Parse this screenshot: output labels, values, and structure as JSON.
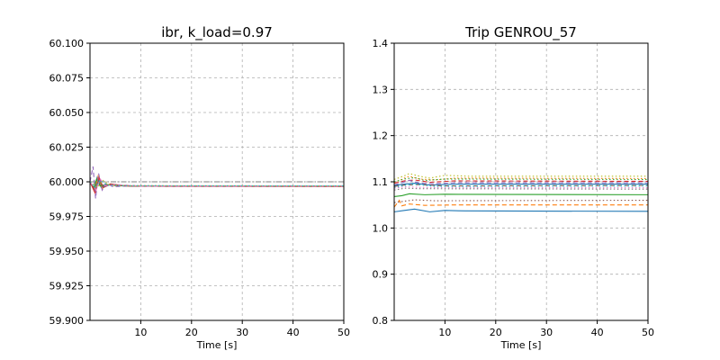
{
  "chart_data": [
    {
      "type": "line",
      "title": "ibr, k_load=0.97",
      "xlabel": "Time [s]",
      "ylabel": "",
      "xlim": [
        0,
        50
      ],
      "ylim": [
        59.9,
        60.1
      ],
      "xticks": [
        10,
        20,
        30,
        40,
        50
      ],
      "xtick_labels": [
        "10",
        "20",
        "30",
        "40",
        "50"
      ],
      "yticks": [
        59.9,
        59.925,
        59.95,
        59.975,
        60.0,
        60.025,
        60.05,
        60.075,
        60.1
      ],
      "ytick_labels": [
        "59.900",
        "59.925",
        "59.950",
        "59.975",
        "60.000",
        "60.025",
        "60.050",
        "60.075",
        "60.100"
      ],
      "grid": true,
      "series": [
        {
          "color": "#1f77b4",
          "dash": "solid",
          "points": [
            [
              0,
              60.0
            ],
            [
              0.8,
              59.994
            ],
            [
              1.4,
              60.003
            ],
            [
              2.2,
              59.996
            ],
            [
              3,
              59.998
            ],
            [
              5,
              59.9975
            ],
            [
              8,
              59.997
            ],
            [
              15,
              59.9968
            ],
            [
              50,
              59.9968
            ]
          ]
        },
        {
          "color": "#ff7f0e",
          "dash": "solid",
          "points": [
            [
              0,
              60.0
            ],
            [
              0.9,
              59.993
            ],
            [
              1.6,
              60.004
            ],
            [
              2.4,
              59.995
            ],
            [
              3.2,
              59.998
            ],
            [
              5,
              59.9972
            ],
            [
              10,
              59.9968
            ],
            [
              50,
              59.9967
            ]
          ]
        },
        {
          "color": "#2ca02c",
          "dash": "solid",
          "points": [
            [
              0,
              60.0
            ],
            [
              0.7,
              59.995
            ],
            [
              1.3,
              60.002
            ],
            [
              2,
              59.997
            ],
            [
              3,
              59.998
            ],
            [
              6,
              59.9972
            ],
            [
              12,
              59.9968
            ],
            [
              50,
              59.9968
            ]
          ]
        },
        {
          "color": "#d62728",
          "dash": "solid",
          "points": [
            [
              0,
              60.0
            ],
            [
              1,
              59.992
            ],
            [
              1.8,
              60.003
            ],
            [
              2.6,
              59.996
            ],
            [
              4,
              59.9985
            ],
            [
              7,
              59.997
            ],
            [
              15,
              59.9967
            ],
            [
              50,
              59.9966
            ]
          ]
        },
        {
          "color": "#9467bd",
          "dash": "dashed",
          "points": [
            [
              0,
              60.0
            ],
            [
              0.6,
              60.011
            ],
            [
              1.1,
              59.988
            ],
            [
              1.7,
              60.006
            ],
            [
              2.4,
              59.994
            ],
            [
              3.2,
              59.999
            ],
            [
              4.5,
              59.9965
            ],
            [
              8,
              59.997
            ],
            [
              50,
              59.9968
            ]
          ]
        },
        {
          "color": "#8c564b",
          "dash": "solid",
          "points": [
            [
              0,
              60.0
            ],
            [
              0.9,
              59.995
            ],
            [
              1.7,
              60.001
            ],
            [
              2.7,
              59.996
            ],
            [
              4,
              59.998
            ],
            [
              8,
              59.9969
            ],
            [
              50,
              59.9968
            ]
          ]
        },
        {
          "color": "#e377c2",
          "dash": "dashed",
          "points": [
            [
              0,
              60.0
            ],
            [
              1.2,
              59.994
            ],
            [
              2,
              60.002
            ],
            [
              3,
              59.997
            ],
            [
              5,
              59.998
            ],
            [
              10,
              59.9969
            ],
            [
              50,
              59.9968
            ]
          ]
        },
        {
          "color": "#7f7f7f",
          "dash": "dashdot",
          "points": [
            [
              0,
              60.0
            ],
            [
              50,
              60.0
            ]
          ]
        },
        {
          "color": "#bcbd22",
          "dash": "dotted",
          "points": [
            [
              0,
              60.0
            ],
            [
              1.5,
              59.996
            ],
            [
              2.5,
              60.001
            ],
            [
              4,
              59.9975
            ],
            [
              8,
              59.9972
            ],
            [
              50,
              59.997
            ]
          ]
        },
        {
          "color": "#17becf",
          "dash": "dotted",
          "points": [
            [
              0,
              60.0
            ],
            [
              1.0,
              59.996
            ],
            [
              2.0,
              60.001
            ],
            [
              3.5,
              59.9975
            ],
            [
              7,
              59.9972
            ],
            [
              50,
              59.997
            ]
          ]
        }
      ]
    },
    {
      "type": "line",
      "title": "Trip GENROU_57",
      "xlabel": "Time [s]",
      "ylabel": "",
      "xlim": [
        0,
        50
      ],
      "ylim": [
        0.8,
        1.4
      ],
      "xticks": [
        10,
        20,
        30,
        40,
        50
      ],
      "xtick_labels": [
        "10",
        "20",
        "30",
        "40",
        "50"
      ],
      "yticks": [
        0.8,
        0.9,
        1.0,
        1.1,
        1.2,
        1.3,
        1.4
      ],
      "ytick_labels": [
        "0.8",
        "0.9",
        "1.0",
        "1.1",
        "1.2",
        "1.3",
        "1.4"
      ],
      "grid": true,
      "series": [
        {
          "color": "#bcbd22",
          "dash": "dotted",
          "points": [
            [
              0,
              1.105
            ],
            [
              2,
              1.113
            ],
            [
              3,
              1.118
            ],
            [
              5,
              1.112
            ],
            [
              7,
              1.108
            ],
            [
              10,
              1.114
            ],
            [
              15,
              1.112
            ],
            [
              50,
              1.112
            ]
          ]
        },
        {
          "color": "#ff7f0e",
          "dash": "dotted",
          "points": [
            [
              0,
              1.098
            ],
            [
              2,
              1.108
            ],
            [
              3,
              1.112
            ],
            [
              5,
              1.106
            ],
            [
              8,
              1.104
            ],
            [
              12,
              1.108
            ],
            [
              50,
              1.107
            ]
          ]
        },
        {
          "color": "#2ca02c",
          "dash": "dotted",
          "points": [
            [
              0,
              1.1
            ],
            [
              2,
              1.106
            ],
            [
              4,
              1.109
            ],
            [
              6,
              1.103
            ],
            [
              10,
              1.106
            ],
            [
              50,
              1.105
            ]
          ]
        },
        {
          "color": "#d62728",
          "dash": "dashed",
          "points": [
            [
              0,
              1.097
            ],
            [
              2,
              1.102
            ],
            [
              4,
              1.104
            ],
            [
              7,
              1.099
            ],
            [
              12,
              1.102
            ],
            [
              50,
              1.101
            ]
          ]
        },
        {
          "color": "#9467bd",
          "dash": "dashed",
          "points": [
            [
              0,
              1.093
            ],
            [
              1.5,
              1.098
            ],
            [
              3,
              1.103
            ],
            [
              5,
              1.097
            ],
            [
              8,
              1.096
            ],
            [
              12,
              1.098
            ],
            [
              50,
              1.098
            ]
          ]
        },
        {
          "color": "#1f77b4",
          "dash": "solid",
          "points": [
            [
              0,
              1.092
            ],
            [
              2,
              1.095
            ],
            [
              4,
              1.097
            ],
            [
              7,
              1.093
            ],
            [
              12,
              1.095
            ],
            [
              50,
              1.095
            ]
          ]
        },
        {
          "color": "#8c564b",
          "dash": "dashed",
          "points": [
            [
              0,
              1.09
            ],
            [
              2,
              1.093
            ],
            [
              5,
              1.094
            ],
            [
              10,
              1.091
            ],
            [
              50,
              1.092
            ]
          ]
        },
        {
          "color": "#17becf",
          "dash": "dotted",
          "points": [
            [
              0,
              1.088
            ],
            [
              2,
              1.092
            ],
            [
              4,
              1.095
            ],
            [
              8,
              1.09
            ],
            [
              50,
              1.091
            ]
          ]
        },
        {
          "color": "#e377c2",
          "dash": "dotted",
          "points": [
            [
              0,
              1.086
            ],
            [
              2,
              1.089
            ],
            [
              5,
              1.088
            ],
            [
              10,
              1.087
            ],
            [
              50,
              1.087
            ]
          ]
        },
        {
          "color": "#7f7f7f",
          "dash": "dotted",
          "points": [
            [
              0,
              1.082
            ],
            [
              2,
              1.086
            ],
            [
              5,
              1.085
            ],
            [
              50,
              1.084
            ]
          ]
        },
        {
          "color": "#2ca02c",
          "dash": "solid",
          "points": [
            [
              0,
              1.068
            ],
            [
              1.5,
              1.07
            ],
            [
              3,
              1.074
            ],
            [
              6,
              1.072
            ],
            [
              10,
              1.073
            ],
            [
              50,
              1.072
            ]
          ]
        },
        {
          "color": "#8c564b",
          "dash": "dotted",
          "points": [
            [
              0,
              1.055
            ],
            [
              2,
              1.058
            ],
            [
              4,
              1.061
            ],
            [
              8,
              1.059
            ],
            [
              50,
              1.06
            ]
          ]
        },
        {
          "color": "#ff7f0e",
          "dash": "dashed",
          "points": [
            [
              0,
              1.045
            ],
            [
              1,
              1.06
            ],
            [
              1.5,
              1.048
            ],
            [
              3,
              1.052
            ],
            [
              6,
              1.049
            ],
            [
              12,
              1.05
            ],
            [
              50,
              1.05
            ]
          ]
        },
        {
          "color": "#1f77b4",
          "dash": "solid",
          "points": [
            [
              0,
              1.035
            ],
            [
              2,
              1.038
            ],
            [
              4,
              1.041
            ],
            [
              7,
              1.035
            ],
            [
              10,
              1.038
            ],
            [
              14,
              1.037
            ],
            [
              50,
              1.036
            ]
          ]
        }
      ]
    }
  ]
}
